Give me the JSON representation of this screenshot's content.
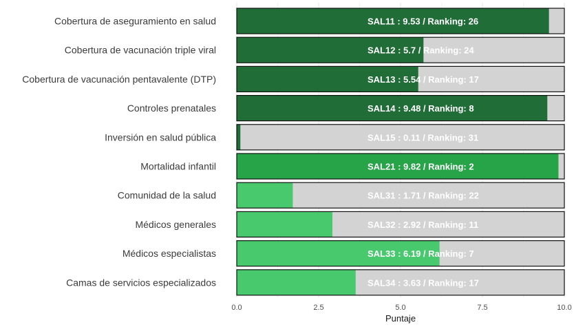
{
  "chart_data": {
    "type": "bar",
    "orientation": "horizontal",
    "title": "",
    "xlabel": "Puntaje",
    "ylabel": "",
    "xlim": [
      0,
      10
    ],
    "x_ticks": [
      0,
      2.5,
      5,
      7.5,
      10
    ],
    "x_tick_labels": [
      "0.0",
      "2.5",
      "5.0",
      "7.5",
      "10.0"
    ],
    "grid": true,
    "max_value": 10,
    "background_color": "#d3d3d3",
    "categories": [
      "Cobertura de aseguramiento en salud",
      "Cobertura de vacunación triple viral",
      "Cobertura de vacunación pentavalente (DTP)",
      "Controles prenatales",
      "Inversión en salud pública",
      "Mortalidad infantil",
      "Comunidad de la salud",
      "Médicos generales",
      "Médicos especialistas",
      "Camas de servicios especializados"
    ],
    "codes": [
      "SAL11",
      "SAL12",
      "SAL13",
      "SAL14",
      "SAL15",
      "SAL21",
      "SAL31",
      "SAL32",
      "SAL33",
      "SAL34"
    ],
    "values": [
      9.53,
      5.7,
      5.54,
      9.48,
      0.11,
      9.82,
      1.71,
      2.92,
      6.19,
      3.63
    ],
    "rankings": [
      26,
      24,
      17,
      8,
      31,
      2,
      22,
      11,
      7,
      17
    ],
    "bar_labels": [
      "SAL11 : 9.53 / Ranking: 26",
      "SAL12 : 5.7 / Ranking: 24",
      "SAL13 : 5.54 / Ranking: 17",
      "SAL14 : 9.48 / Ranking: 8",
      "SAL15 : 0.11 / Ranking: 31",
      "SAL21 : 9.82 / Ranking: 2",
      "SAL31 : 1.71 / Ranking: 22",
      "SAL32 : 2.92 / Ranking: 11",
      "SAL33 : 6.19 / Ranking: 7",
      "SAL34 : 3.63 / Ranking: 17"
    ],
    "group_colors": {
      "SAL1": "#216d38",
      "SAL2": "#27a348",
      "SAL3": "#48c96e"
    }
  }
}
